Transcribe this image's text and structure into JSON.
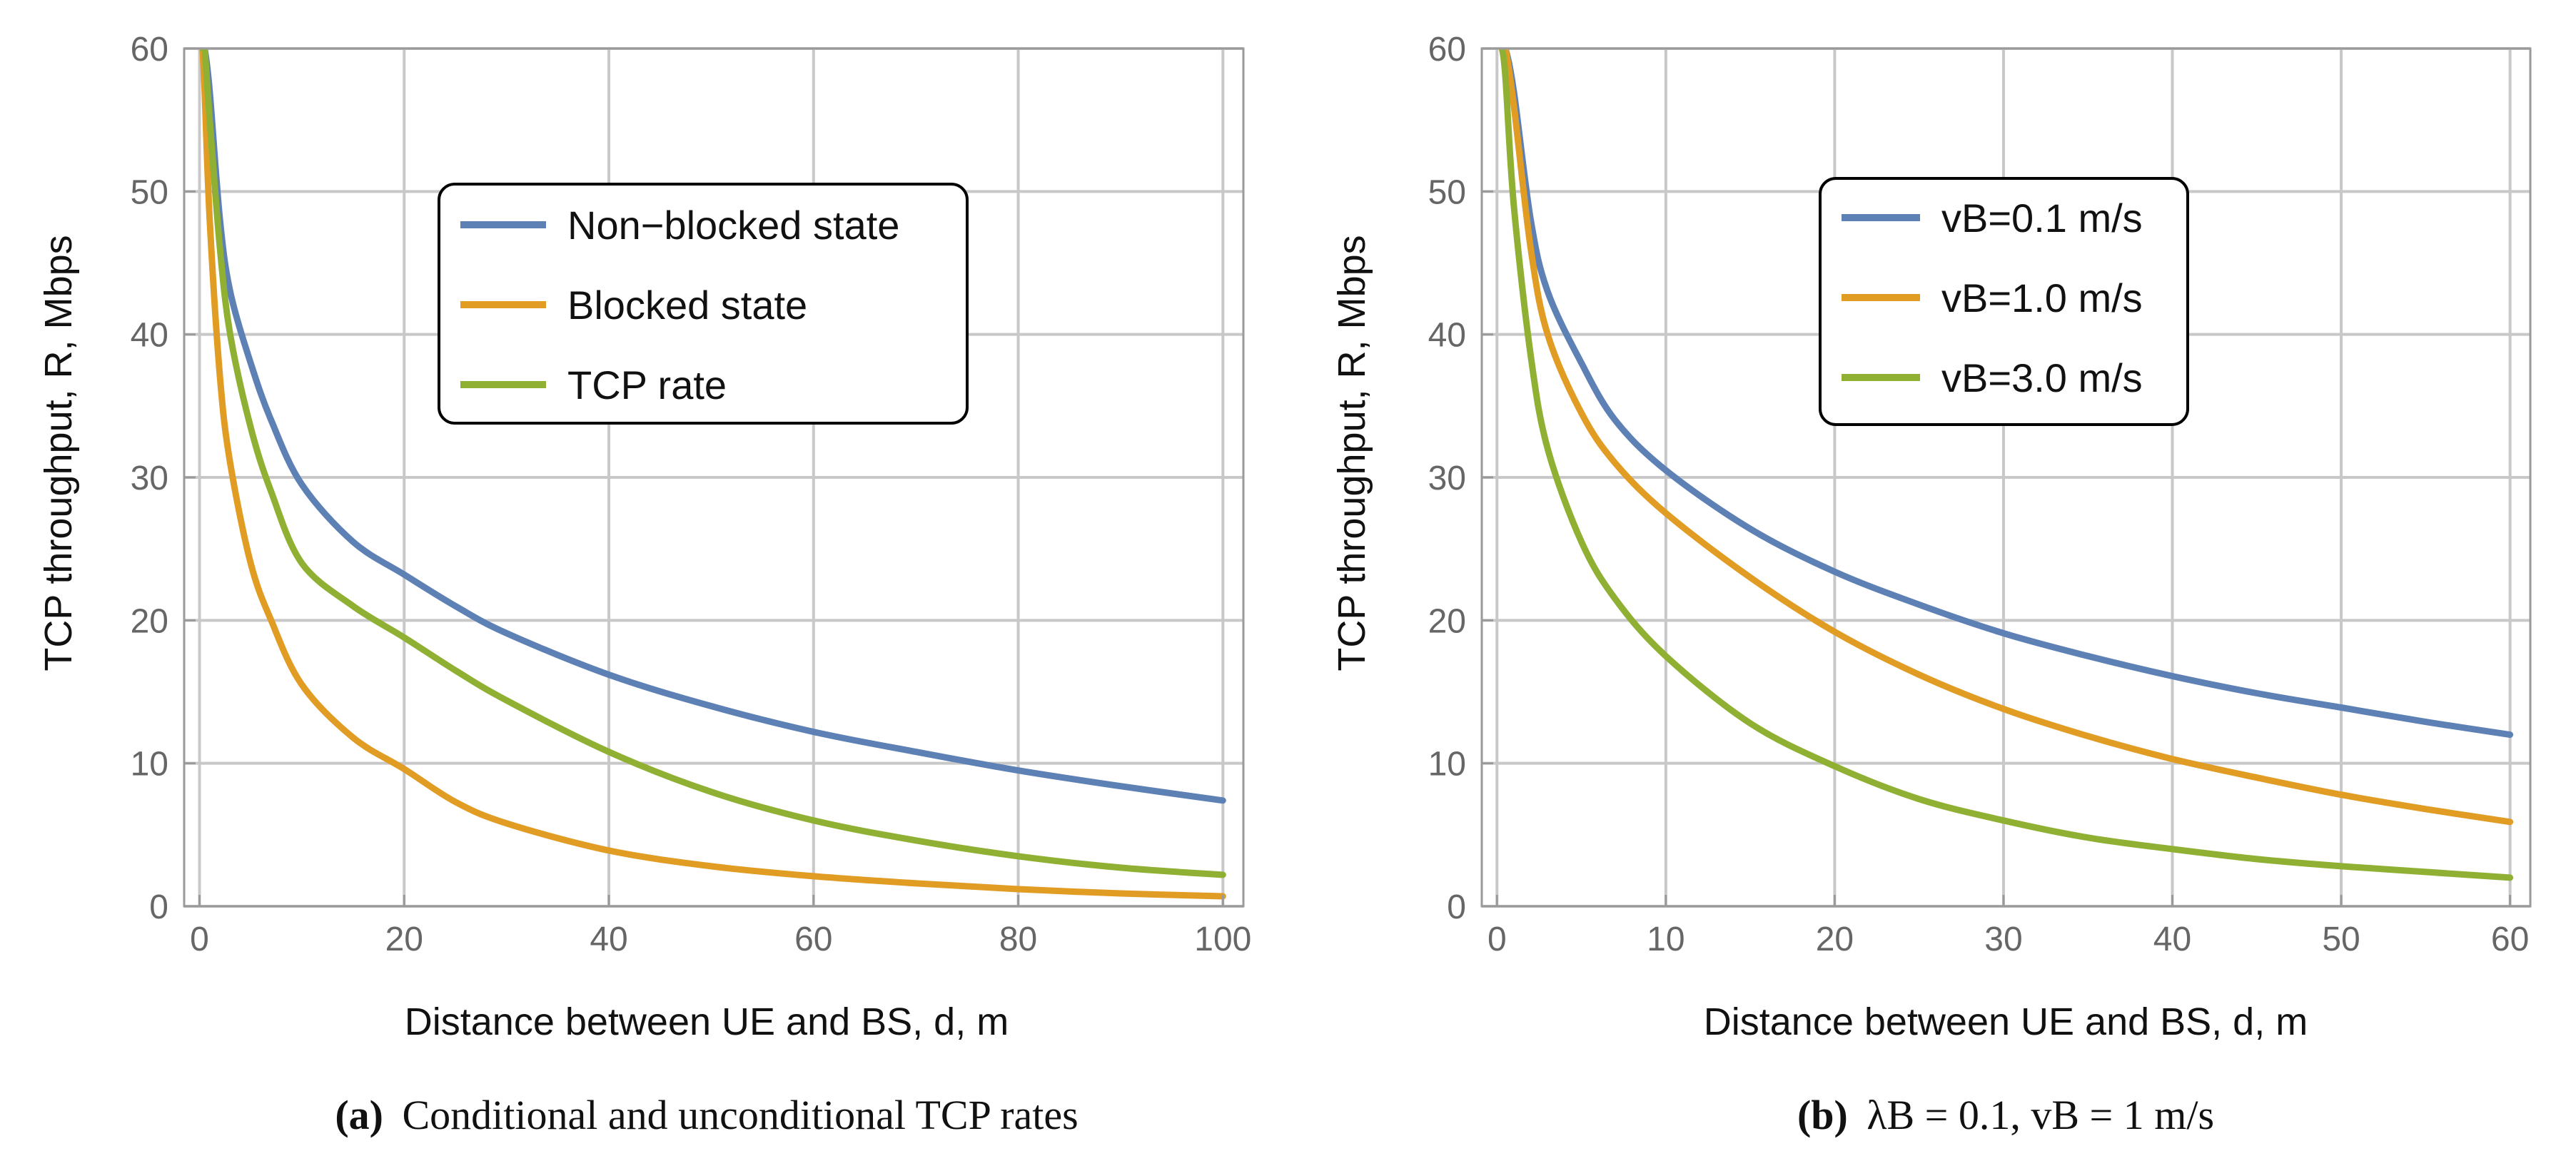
{
  "chart_data": [
    {
      "type": "line",
      "panel": "a",
      "title": "",
      "xlabel": "Distance between UE and BS, d, m",
      "ylabel": "TCP throughput, R, Mbps",
      "xlim": [
        -1.5,
        102
      ],
      "ylim": [
        0,
        60
      ],
      "xticks": [
        0,
        20,
        40,
        60,
        80,
        100
      ],
      "yticks": [
        0,
        10,
        20,
        30,
        40,
        50,
        60
      ],
      "grid": true,
      "legend_position": "top-right",
      "caption": {
        "label": "(a)",
        "text": "Conditional and unconditional TCP rates"
      },
      "series": [
        {
          "name": "Non−blocked state",
          "color": "#5e81b5",
          "x": [
            0.3,
            0.5,
            1,
            2,
            3,
            5,
            7,
            10,
            15,
            20,
            25,
            30,
            40,
            50,
            60,
            70,
            80,
            90,
            100
          ],
          "y": [
            60,
            60,
            57,
            48,
            43,
            38,
            34,
            29.5,
            25.5,
            23.2,
            21,
            19.1,
            16.2,
            14,
            12.2,
            10.8,
            9.5,
            8.4,
            7.4
          ]
        },
        {
          "name": "Blocked state",
          "color": "#e19c24",
          "x": [
            0.3,
            0.5,
            1,
            2,
            3,
            5,
            7,
            10,
            15,
            20,
            25,
            30,
            40,
            50,
            60,
            70,
            80,
            90,
            100
          ],
          "y": [
            60,
            57,
            48,
            37,
            31,
            24,
            20,
            15.5,
            11.8,
            9.6,
            7.3,
            5.8,
            3.9,
            2.8,
            2.1,
            1.6,
            1.2,
            0.9,
            0.7
          ]
        },
        {
          "name": "TCP rate",
          "color": "#8fb032",
          "x": [
            0.3,
            0.5,
            1,
            2,
            3,
            5,
            7,
            10,
            15,
            20,
            25,
            30,
            40,
            50,
            60,
            70,
            80,
            90,
            100
          ],
          "y": [
            60,
            60,
            55,
            46,
            40,
            33.5,
            29,
            24,
            21,
            18.8,
            16.5,
            14.4,
            10.8,
            8,
            6,
            4.6,
            3.5,
            2.7,
            2.2
          ]
        }
      ]
    },
    {
      "type": "line",
      "panel": "b",
      "title": "",
      "xlabel": "Distance between UE and BS, d, m",
      "ylabel": "TCP throughput, R, Mbps",
      "xlim": [
        -0.9,
        61.2
      ],
      "ylim": [
        0,
        60
      ],
      "xticks": [
        0,
        10,
        20,
        30,
        40,
        50,
        60
      ],
      "yticks": [
        0,
        10,
        20,
        30,
        40,
        50,
        60
      ],
      "grid": true,
      "legend_position": "top-right",
      "caption": {
        "label": "(b)",
        "text": "λB = 0.1, vB = 1 m/s"
      },
      "series": [
        {
          "name": "vB=0.1 m/s",
          "color": "#5e81b5",
          "x": [
            0.3,
            0.5,
            1,
            2,
            3,
            5,
            7,
            10,
            15,
            20,
            25,
            30,
            35,
            40,
            45,
            50,
            55,
            60
          ],
          "y": [
            60,
            60,
            57,
            48,
            43,
            38,
            34,
            30.5,
            26.4,
            23.4,
            21.1,
            19.1,
            17.5,
            16.1,
            14.9,
            13.9,
            12.9,
            12
          ]
        },
        {
          "name": "vB=1.0 m/s",
          "color": "#e19c24",
          "x": [
            0.3,
            0.5,
            1,
            2,
            3,
            5,
            7,
            10,
            15,
            20,
            25,
            30,
            35,
            40,
            45,
            50,
            55,
            60
          ],
          "y": [
            60,
            60,
            56,
            46,
            40,
            34.5,
            31,
            27.5,
            23,
            19.2,
            16.2,
            13.8,
            11.9,
            10.3,
            9,
            7.8,
            6.8,
            5.9
          ]
        },
        {
          "name": "vB=3.0 m/s",
          "color": "#8fb032",
          "x": [
            0.3,
            0.5,
            1,
            2,
            3,
            5,
            7,
            10,
            15,
            20,
            25,
            30,
            35,
            40,
            45,
            50,
            55,
            60
          ],
          "y": [
            60,
            58,
            49,
            38.5,
            32,
            25.5,
            21.5,
            17.5,
            12.8,
            9.8,
            7.5,
            6,
            4.8,
            4,
            3.3,
            2.8,
            2.4,
            2
          ]
        }
      ]
    }
  ]
}
